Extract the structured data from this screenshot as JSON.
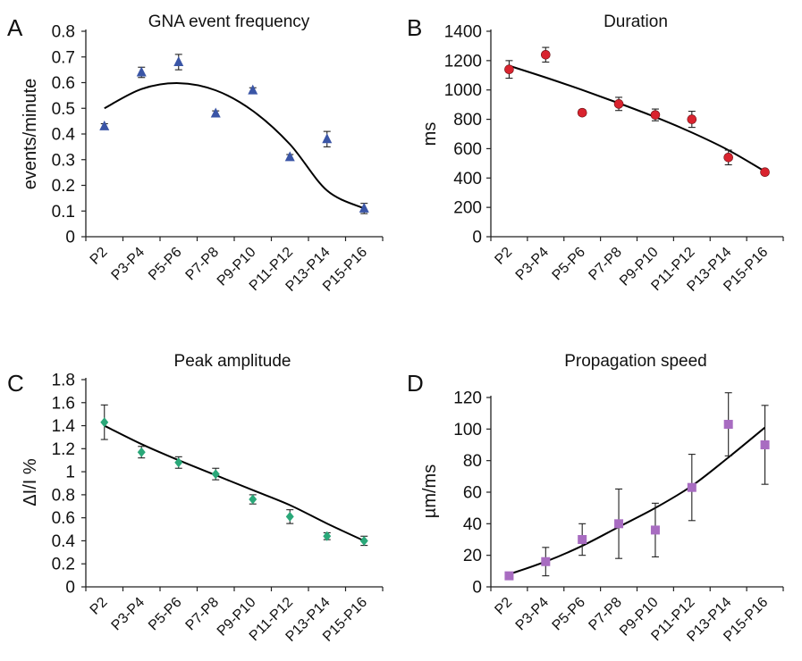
{
  "chart_data": [
    {
      "panel": "A",
      "type": "scatter",
      "title": "GNA event frequency",
      "ylabel": "events/minute",
      "xlabel": "",
      "categories": [
        "P2",
        "P3-P4",
        "P5-P6",
        "P7-P8",
        "P9-P10",
        "P11-P12",
        "P13-P14",
        "P15-P16"
      ],
      "ylim": [
        0,
        0.8
      ],
      "yticks": [
        "0",
        "0.1",
        "0.2",
        "0.3",
        "0.4",
        "0.5",
        "0.6",
        "0.7",
        "0.8"
      ],
      "series": [
        {
          "marker": "triangle",
          "color": "#3a55a6",
          "values": [
            0.43,
            0.64,
            0.68,
            0.48,
            0.57,
            0.31,
            0.38,
            0.11
          ],
          "errors": [
            0.01,
            0.02,
            0.03,
            0.01,
            0.01,
            0.01,
            0.03,
            0.02
          ]
        }
      ],
      "trendline": {
        "type": "polynomial",
        "values": [
          0.5,
          0.575,
          0.598,
          0.57,
          0.49,
          0.36,
          0.18,
          0.11
        ]
      },
      "grid": false
    },
    {
      "panel": "B",
      "type": "scatter",
      "title": "Duration",
      "ylabel": "ms",
      "xlabel": "",
      "categories": [
        "P2",
        "P3-P4",
        "P5-P6",
        "P7-P8",
        "P9-P10",
        "P11-P12",
        "P13-P14",
        "P15-P16"
      ],
      "ylim": [
        0,
        1400
      ],
      "yticks": [
        "0",
        "200",
        "400",
        "600",
        "800",
        "1000",
        "1200",
        "1400"
      ],
      "series": [
        {
          "marker": "circle",
          "color": "#d9232e",
          "values": [
            1140,
            1240,
            845,
            905,
            830,
            800,
            540,
            440
          ],
          "errors": [
            60,
            50,
            20,
            45,
            40,
            55,
            50,
            15
          ]
        }
      ],
      "trendline": {
        "type": "polynomial",
        "values": [
          1165,
          1085,
          1000,
          910,
          815,
          710,
          590,
          445
        ]
      },
      "grid": false
    },
    {
      "panel": "C",
      "type": "scatter",
      "title": "Peak amplitude",
      "ylabel": "ΔI/I %",
      "xlabel": "",
      "categories": [
        "P2",
        "P3-P4",
        "P5-P6",
        "P7-P8",
        "P9-P10",
        "P11-P12",
        "P13-P14",
        "P15-P16"
      ],
      "ylim": [
        0,
        1.8
      ],
      "yticks": [
        "0",
        "0.2",
        "0.4",
        "0.6",
        "0.8",
        "1",
        "1.2",
        "1.4",
        "1.6",
        "1.8"
      ],
      "series": [
        {
          "marker": "diamond",
          "color": "#2aa879",
          "values": [
            1.43,
            1.17,
            1.08,
            0.98,
            0.76,
            0.61,
            0.44,
            0.4
          ],
          "errors": [
            0.15,
            0.05,
            0.05,
            0.05,
            0.04,
            0.06,
            0.03,
            0.04
          ]
        }
      ],
      "trendline": {
        "type": "polynomial",
        "values": [
          1.4,
          1.24,
          1.1,
          0.97,
          0.84,
          0.71,
          0.55,
          0.4
        ]
      },
      "grid": false
    },
    {
      "panel": "D",
      "type": "scatter",
      "title": "Propagation speed",
      "ylabel": "µm/ms",
      "xlabel": "",
      "categories": [
        "P2",
        "P3-P4",
        "P5-P6",
        "P7-P8",
        "P9-P10",
        "P11-P12",
        "P13-P14",
        "P15-P16"
      ],
      "ylim": [
        0,
        120
      ],
      "yticks": [
        "0",
        "20",
        "40",
        "60",
        "80",
        "100",
        "120"
      ],
      "series": [
        {
          "marker": "square",
          "color": "#a86cc1",
          "values": [
            7,
            16,
            30,
            40,
            36,
            63,
            103,
            90
          ],
          "errors": [
            2,
            9,
            10,
            22,
            17,
            21,
            20,
            25
          ]
        }
      ],
      "trendline": {
        "type": "exponential",
        "values": [
          8,
          16,
          26,
          38,
          50,
          64,
          82,
          101
        ]
      },
      "grid": false
    }
  ]
}
